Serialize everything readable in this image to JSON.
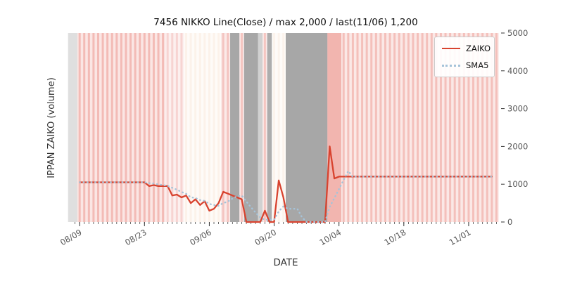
{
  "chart_data": {
    "type": "line",
    "title": "7456 NIKKO Line(Close) / max 2,000 / last(11/06) 1,200",
    "xlabel": "DATE",
    "ylabel": "IPPAN ZAIKO (volume)",
    "ylim": [
      0,
      5000
    ],
    "yticks": [
      0,
      1000,
      2000,
      3000,
      4000,
      5000
    ],
    "xticks": [
      "08/09",
      "08/23",
      "09/06",
      "09/20",
      "10/04",
      "10/18",
      "11/01"
    ],
    "x_domain": [
      "08/07",
      "11/08"
    ],
    "grid": false,
    "legend_position": "upper right",
    "sma_window": 5,
    "dates": [
      "08/09",
      "08/10",
      "08/11",
      "08/12",
      "08/13",
      "08/14",
      "08/15",
      "08/16",
      "08/17",
      "08/18",
      "08/19",
      "08/20",
      "08/21",
      "08/22",
      "08/23",
      "08/24",
      "08/25",
      "08/26",
      "08/27",
      "08/28",
      "08/29",
      "08/30",
      "08/31",
      "09/01",
      "09/02",
      "09/03",
      "09/04",
      "09/05",
      "09/06",
      "09/07",
      "09/08",
      "09/09",
      "09/10",
      "09/11",
      "09/12",
      "09/13",
      "09/14",
      "09/15",
      "09/16",
      "09/17",
      "09/18",
      "09/19",
      "09/20",
      "09/21",
      "09/22",
      "09/23",
      "09/24",
      "09/25",
      "09/26",
      "09/27",
      "09/28",
      "09/29",
      "09/30",
      "10/01",
      "10/02",
      "10/03",
      "10/04",
      "10/05",
      "10/06",
      "10/07",
      "10/08",
      "10/09",
      "10/10",
      "10/11",
      "10/12",
      "10/13",
      "10/14",
      "10/15",
      "10/16",
      "10/17",
      "10/18",
      "10/19",
      "10/20",
      "10/21",
      "10/22",
      "10/23",
      "10/24",
      "10/25",
      "10/26",
      "10/27",
      "10/28",
      "10/29",
      "10/30",
      "10/31",
      "11/01",
      "11/02",
      "11/03",
      "11/04",
      "11/05",
      "11/06"
    ],
    "series": [
      {
        "name": "ZAIKO",
        "color": "#d8432f",
        "style": "solid",
        "values": [
          1050,
          1050,
          1050,
          1050,
          1050,
          1050,
          1050,
          1050,
          1050,
          1050,
          1050,
          1050,
          1050,
          1050,
          1050,
          950,
          975,
          950,
          950,
          950,
          700,
          725,
          650,
          700,
          500,
          600,
          450,
          550,
          300,
          350,
          500,
          800,
          750,
          700,
          650,
          600,
          0,
          0,
          0,
          0,
          300,
          0,
          0,
          1100,
          650,
          0,
          0,
          0,
          0,
          0,
          0,
          0,
          0,
          0,
          2000,
          1150,
          1200,
          1200,
          1200,
          1200,
          1200,
          1200,
          1200,
          1200,
          1200,
          1200,
          1200,
          1200,
          1200,
          1200,
          1200,
          1200,
          1200,
          1200,
          1200,
          1200,
          1200,
          1200,
          1200,
          1200,
          1200,
          1200,
          1200,
          1200,
          1200,
          1200,
          1200,
          1200,
          1200,
          1200
        ]
      },
      {
        "name": "SMA5",
        "color": "#a5c3d9",
        "style": "dotted",
        "derived": "5-day simple moving average of ZAIKO"
      }
    ],
    "bands": [
      {
        "from": "08/07",
        "to": "08/09",
        "color": "#dcdcdc",
        "alpha": 0.9,
        "pattern": "solid"
      },
      {
        "from": "08/09",
        "to": "08/28",
        "color": "#e25a4d",
        "alpha": 0.3,
        "pattern": "daily"
      },
      {
        "from": "08/28",
        "to": "09/01",
        "color": "#e25a4d",
        "alpha": 0.18,
        "pattern": "daily"
      },
      {
        "from": "09/01",
        "to": "09/09",
        "color": "#f2c8a0",
        "alpha": 0.16,
        "pattern": "daily"
      },
      {
        "from": "09/09",
        "to": "09/11",
        "color": "#e25a4d",
        "alpha": 0.26,
        "pattern": "daily"
      },
      {
        "from": "09/11",
        "to": "09/13",
        "color": "#8a8a8a",
        "alpha": 0.75,
        "pattern": "solid"
      },
      {
        "from": "09/13",
        "to": "09/14",
        "color": "#e25a4d",
        "alpha": 0.25,
        "pattern": "daily"
      },
      {
        "from": "09/14",
        "to": "09/17",
        "color": "#8a8a8a",
        "alpha": 0.75,
        "pattern": "solid"
      },
      {
        "from": "09/17",
        "to": "09/18",
        "color": "#9a9a9a",
        "alpha": 0.45,
        "pattern": "solid"
      },
      {
        "from": "09/18",
        "to": "09/19",
        "color": "#e25a4d",
        "alpha": 0.25,
        "pattern": "daily"
      },
      {
        "from": "09/19",
        "to": "09/20",
        "color": "#8a8a8a",
        "alpha": 0.7,
        "pattern": "solid"
      },
      {
        "from": "09/20",
        "to": "09/23",
        "color": "#f2c8a0",
        "alpha": 0.14,
        "pattern": "daily"
      },
      {
        "from": "09/23",
        "to": "10/02",
        "color": "#8a8a8a",
        "alpha": 0.75,
        "pattern": "solid"
      },
      {
        "from": "10/02",
        "to": "10/05",
        "color": "#e25a4d",
        "alpha": 0.45,
        "pattern": "solid"
      },
      {
        "from": "10/05",
        "to": "11/08",
        "color": "#e25a4d",
        "alpha": 0.28,
        "pattern": "daily"
      }
    ]
  },
  "colors": {
    "zaiko_line": "#d8432f",
    "sma5_line": "#a5c3d9",
    "tick_label": "#555555",
    "title": "#111111",
    "axis_label": "#333333",
    "legend_border": "#cccccc"
  }
}
